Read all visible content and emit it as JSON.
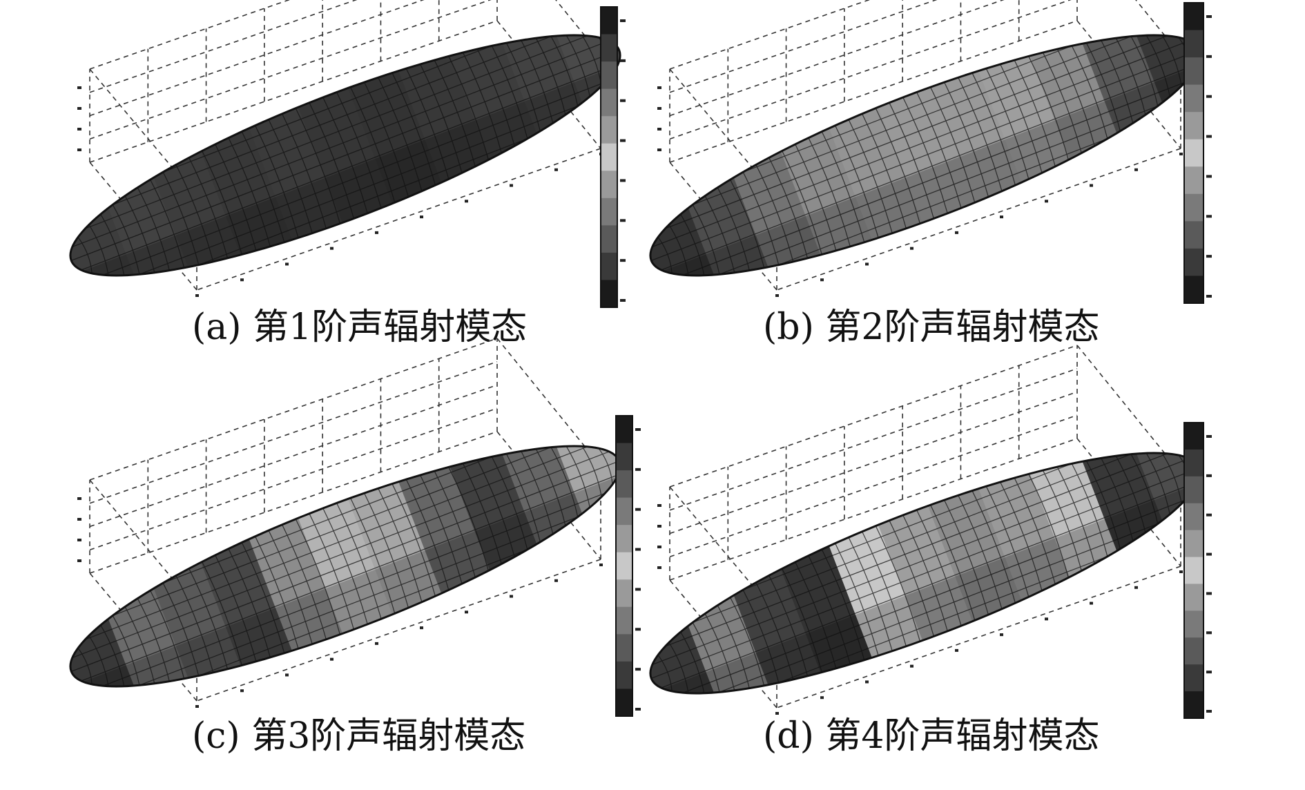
{
  "panels": [
    {
      "id": "a",
      "caption": "(a) 第1阶声辐射模态",
      "pattern": [
        0.24,
        0.26,
        0.24,
        0.22,
        0.23,
        0.21,
        0.2,
        0.22,
        0.24,
        0.26,
        0.29
      ]
    },
    {
      "id": "b",
      "caption": "(b) 第2阶声辐射模态",
      "pattern": [
        0.2,
        0.3,
        0.45,
        0.55,
        0.58,
        0.6,
        0.6,
        0.62,
        0.55,
        0.35,
        0.22
      ]
    },
    {
      "id": "c",
      "caption": "(c) 第3阶声辐射模态",
      "pattern": [
        0.22,
        0.42,
        0.35,
        0.28,
        0.55,
        0.7,
        0.65,
        0.4,
        0.25,
        0.4,
        0.65
      ]
    },
    {
      "id": "d",
      "caption": "(d) 第4阶声辐射模态",
      "pattern": [
        0.22,
        0.5,
        0.25,
        0.2,
        0.78,
        0.62,
        0.55,
        0.6,
        0.75,
        0.22,
        0.3
      ]
    }
  ],
  "colorbar": {
    "ramp": [
      "#1a1a1a",
      "#3a3a3a",
      "#5a5a5a",
      "#7a7a7a",
      "#9a9a9a",
      "#c8c8c8",
      "#9a9a9a",
      "#7a7a7a",
      "#5a5a5a",
      "#3a3a3a",
      "#1a1a1a"
    ]
  }
}
